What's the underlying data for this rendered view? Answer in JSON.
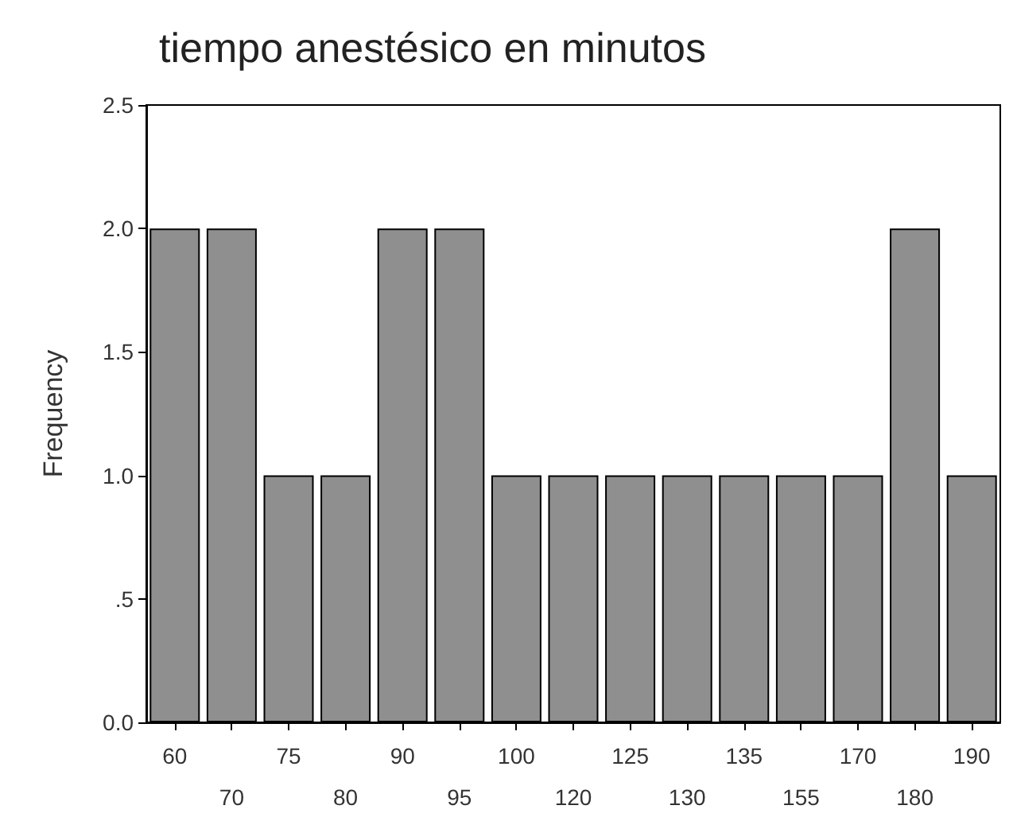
{
  "chart_data": {
    "type": "bar",
    "title": "tiempo anestésico en minutos",
    "ylabel": "Frequency",
    "categories": [
      "60",
      "70",
      "75",
      "80",
      "90",
      "95",
      "100",
      "120",
      "125",
      "130",
      "135",
      "155",
      "170",
      "180",
      "190"
    ],
    "values": [
      2,
      2,
      1,
      1,
      2,
      2,
      1,
      1,
      1,
      1,
      1,
      1,
      1,
      2,
      1
    ],
    "color": "#8f8f8f",
    "ylim": [
      0,
      2.5
    ],
    "yticks": [
      {
        "value": 0,
        "label": "0.0"
      },
      {
        "value": 0.5,
        "label": ".5"
      },
      {
        "value": 1,
        "label": "1.0"
      },
      {
        "value": 1.5,
        "label": "1.5"
      },
      {
        "value": 2,
        "label": "2.0"
      },
      {
        "value": 2.5,
        "label": "2.5"
      }
    ],
    "grid": false
  }
}
